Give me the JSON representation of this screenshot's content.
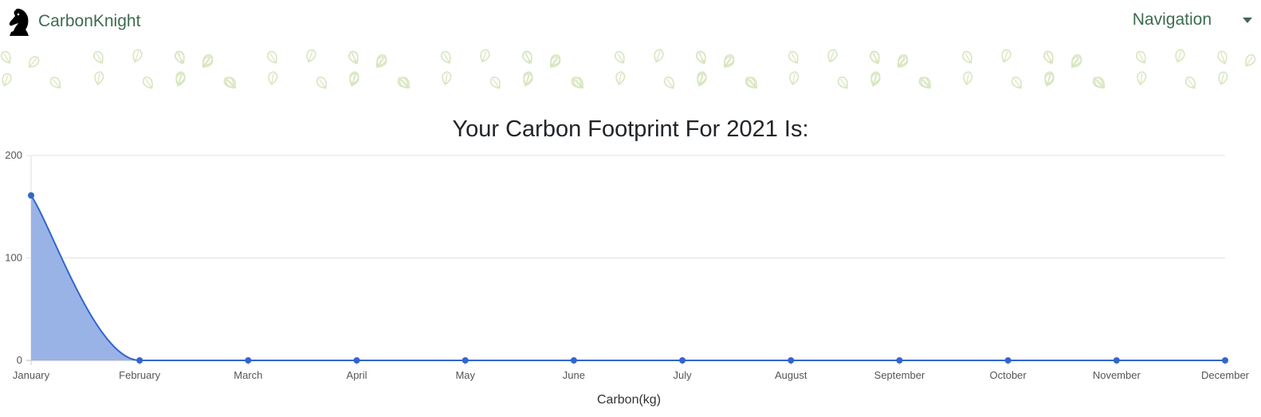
{
  "header": {
    "brand": "CarbonKnight",
    "logo_icon": "chess-knight-icon",
    "nav_label": "Navigation",
    "nav_icon": "caret-down-icon",
    "brand_color": "#3d6b4f",
    "pattern_icon": "leaf-icon",
    "pattern_color": "#d7e6bf"
  },
  "page": {
    "title": "Your Carbon Footprint For 2021 Is:"
  },
  "chart_data": {
    "type": "area",
    "title": "Your Carbon Footprint For 2021 Is:",
    "xlabel": "Carbon(kg)",
    "ylabel": "",
    "categories": [
      "January",
      "February",
      "March",
      "April",
      "May",
      "June",
      "July",
      "August",
      "September",
      "October",
      "November",
      "December"
    ],
    "values": [
      161,
      0,
      0,
      0,
      0,
      0,
      0,
      0,
      0,
      0,
      0,
      0
    ],
    "ylim": [
      0,
      200
    ],
    "yticks": [
      0,
      100,
      200
    ],
    "grid": true,
    "line_color": "#3366cc",
    "fill_color": "#9ab3e6"
  }
}
